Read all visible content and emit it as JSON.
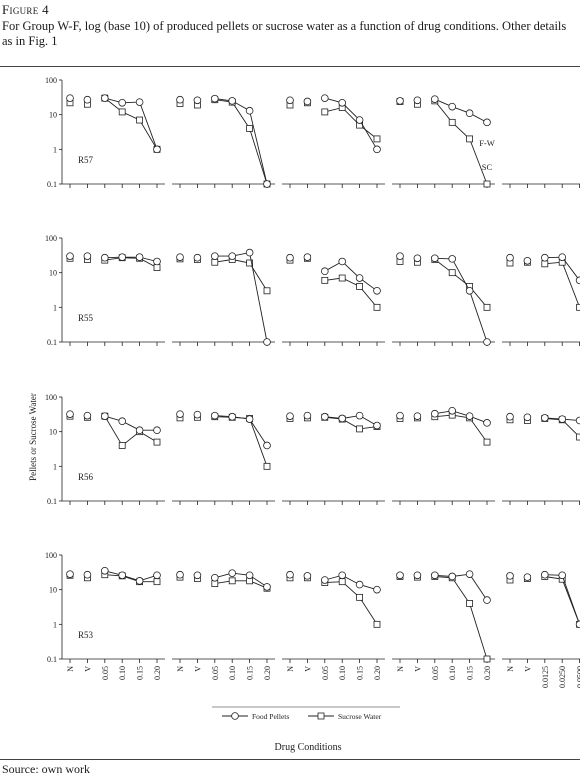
{
  "figure_label": "Figure 4",
  "caption": "For Group W-F, log (base 10) of produced pellets or sucrose water as a function of drug conditions. Other details as in Fig. 1",
  "source": "Source: own work",
  "chart_data": {
    "type": "line",
    "scale": "log",
    "y_ticks": [
      100,
      10,
      1,
      0.1
    ],
    "y_tick_labels": [
      "100",
      "10",
      "1",
      "0.1"
    ],
    "ylim": [
      0.1,
      100
    ],
    "ylabel": "Pellets or Sucrose Water",
    "xlabel": "Drug Conditions",
    "column_categories": [
      [
        "N",
        "V",
        "0.05",
        "0.10",
        "0.15",
        "0.20"
      ],
      [
        "N",
        "V",
        "0.05",
        "0.10",
        "0.15",
        "0.20"
      ],
      [
        "N",
        "V",
        "0.05",
        "0.10",
        "0.15",
        "0.20"
      ],
      [
        "N",
        "V",
        "0.05",
        "0.10",
        "0.15",
        "0.20"
      ],
      [
        "N",
        "V",
        "0.0125",
        "0.0250",
        "0.0500",
        "0.1000"
      ]
    ],
    "key_labels": [
      "F-W",
      "SC"
    ],
    "legend": [
      {
        "name": "Food Pellets",
        "marker": "circle"
      },
      {
        "name": "Sucrose Water",
        "marker": "square"
      }
    ],
    "rows": [
      {
        "rat": "R57",
        "panels": [
          {
            "food": [
              30,
              27,
              30,
              22,
              23,
              1
            ],
            "sucrose": [
              22,
              20,
              30,
              12,
              7,
              1
            ]
          },
          {
            "food": [
              27,
              26,
              29,
              25,
              13,
              0.1
            ],
            "sucrose": [
              21,
              19,
              27,
              23,
              4,
              0.1
            ]
          },
          {
            "food": [
              26,
              24,
              30,
              22,
              7,
              1
            ],
            "sucrose": [
              19,
              22,
              12,
              16,
              5,
              2
            ]
          },
          {
            "food": [
              25,
              26,
              28,
              17,
              11,
              6
            ],
            "sucrose": [
              24,
              20,
              25,
              6,
              2,
              0.1
            ]
          },
          null
        ]
      },
      {
        "rat": "R55",
        "panels": [
          {
            "food": [
              30,
              30,
              27,
              28,
              28,
              21
            ],
            "sucrose": [
              26,
              24,
              23,
              27,
              26,
              14
            ]
          },
          {
            "food": [
              28,
              27,
              30,
              30,
              38,
              0.1
            ],
            "sucrose": [
              25,
              24,
              20,
              24,
              19,
              3
            ]
          },
          {
            "food": [
              27,
              28,
              11,
              21,
              7,
              3
            ],
            "sucrose": [
              23,
              26,
              6,
              7,
              4,
              1
            ]
          },
          {
            "food": [
              30,
              26,
              26,
              25,
              3,
              0.1
            ],
            "sucrose": [
              21,
              20,
              24,
              10,
              4,
              1
            ]
          },
          {
            "food": [
              27,
              22,
              27,
              28,
              6,
              5
            ],
            "sucrose": [
              19,
              20,
              18,
              20,
              1,
              0.1
            ]
          }
        ]
      },
      {
        "rat": "R56",
        "panels": [
          {
            "food": [
              32,
              29,
              28,
              20,
              11,
              11
            ],
            "sucrose": [
              28,
              26,
              28,
              4,
              10,
              5
            ]
          },
          {
            "food": [
              32,
              31,
              29,
              27,
              23,
              4
            ],
            "sucrose": [
              25,
              26,
              27,
              26,
              24,
              1
            ]
          },
          {
            "food": [
              28,
              29,
              27,
              24,
              29,
              15
            ],
            "sucrose": [
              24,
              25,
              26,
              23,
              12,
              14
            ]
          },
          {
            "food": [
              29,
              28,
              33,
              40,
              28,
              18
            ],
            "sucrose": [
              24,
              25,
              27,
              30,
              25,
              5
            ]
          },
          {
            "food": [
              27,
              26,
              25,
              23,
              21,
              3
            ],
            "sucrose": [
              22,
              21,
              24,
              22,
              7,
              5
            ]
          }
        ]
      },
      {
        "rat": "R53",
        "panels": [
          {
            "food": [
              28,
              27,
              35,
              26,
              18,
              26
            ],
            "sucrose": [
              26,
              22,
              27,
              25,
              17,
              17
            ]
          },
          {
            "food": [
              27,
              26,
              22,
              30,
              26,
              12
            ],
            "sucrose": [
              23,
              21,
              15,
              18,
              18,
              11
            ]
          },
          {
            "food": [
              27,
              25,
              19,
              26,
              14,
              10
            ],
            "sucrose": [
              22,
              22,
              16,
              17,
              6,
              1
            ]
          },
          {
            "food": [
              26,
              26,
              26,
              24,
              28,
              5
            ],
            "sucrose": [
              24,
              23,
              24,
              22,
              4,
              0.1
            ]
          },
          {
            "food": [
              25,
              23,
              27,
              26,
              1,
              0.1
            ],
            "sucrose": [
              19,
              21,
              24,
              20,
              1,
              0.1
            ]
          }
        ]
      }
    ]
  }
}
